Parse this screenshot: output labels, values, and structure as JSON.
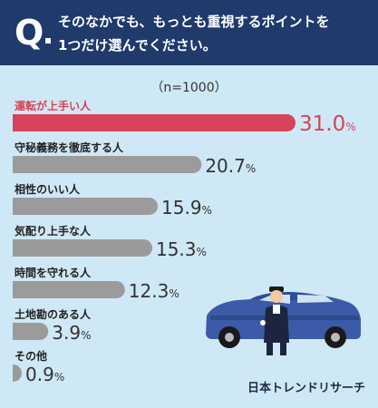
{
  "header": {
    "q_mark": "Q",
    "line1": "そのなかでも、もっとも重視するポイントを",
    "line2": "1つだけ選んでください。"
  },
  "sample_size": "（n=1000）",
  "brand": "日本トレンドリサーチ",
  "colors": {
    "header": "#1f3a6b",
    "background": "#cfe8f5",
    "highlight": "#d6435a",
    "bar": "#9b9b9b",
    "label": "#222222"
  },
  "illustration": "chauffeur-car",
  "chart_data": {
    "type": "bar",
    "orientation": "horizontal",
    "unit": "%",
    "xlim": [
      0,
      31
    ],
    "categories": [
      "運転が上手い人",
      "守秘義務を徹底する人",
      "相性のいい人",
      "気配り上手な人",
      "時間を守れる人",
      "土地勘のある人",
      "その他"
    ],
    "values": [
      31.0,
      20.7,
      15.9,
      15.3,
      12.3,
      3.9,
      0.9
    ],
    "labels": [
      "31.0",
      "20.7",
      "15.9",
      "15.3",
      "12.3",
      "3.9",
      "0.9"
    ],
    "highlight_index": 0
  }
}
